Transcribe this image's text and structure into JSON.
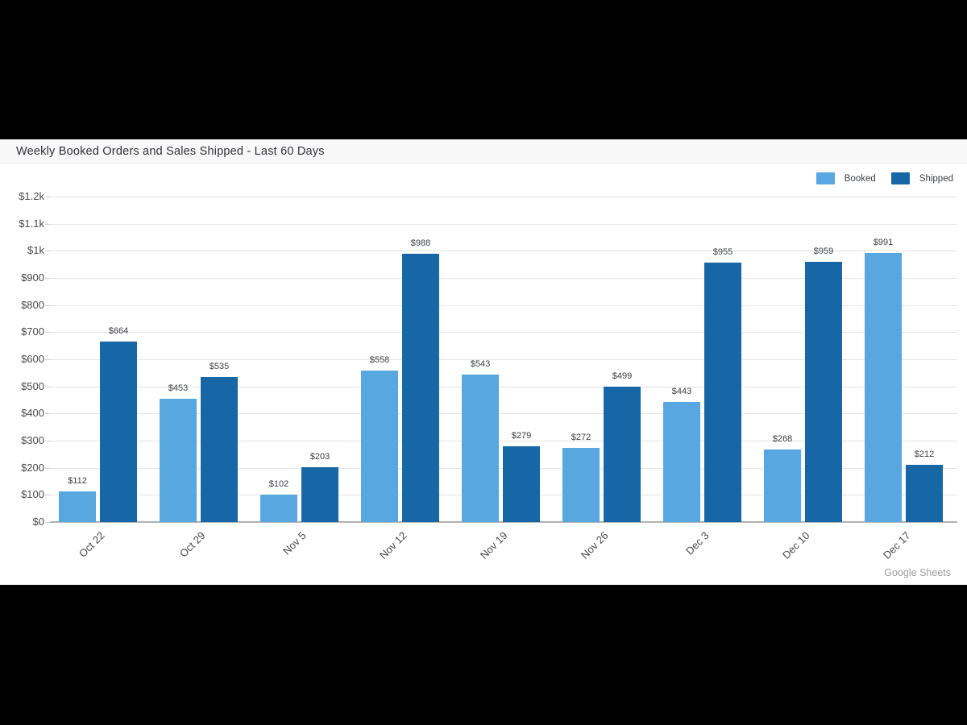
{
  "header": {
    "title": "Weekly Booked Orders and Sales Shipped - Last 60 Days"
  },
  "legend": {
    "items": [
      {
        "label": "Booked",
        "color": "#58a7e0"
      },
      {
        "label": "Shipped",
        "color": "#1767a6"
      }
    ]
  },
  "footer": {
    "watermark": "Google Sheets"
  },
  "chart_data": {
    "type": "bar",
    "title": "Weekly Booked Orders and Sales Shipped - Last 60 Days",
    "categories": [
      "Oct 22",
      "Oct 29",
      "Nov 5",
      "Nov 12",
      "Nov 19",
      "Nov 26",
      "Dec 3",
      "Dec 10",
      "Dec 17"
    ],
    "series": [
      {
        "name": "Booked",
        "color": "#58a7e0",
        "values": [
          112,
          453,
          102,
          558,
          543,
          272,
          443,
          268,
          991
        ]
      },
      {
        "name": "Shipped",
        "color": "#1767a6",
        "values": [
          664,
          535,
          203,
          988,
          279,
          499,
          955,
          959,
          212
        ]
      }
    ],
    "xlabel": "",
    "ylabel": "",
    "ylim": [
      0,
      1200
    ],
    "ytick_step": 100,
    "ytick_labels": [
      "$0",
      "$100",
      "$200",
      "$300",
      "$400",
      "$500",
      "$600",
      "$700",
      "$800",
      "$900",
      "$1k",
      "$1.1k",
      "$1.2k"
    ],
    "value_label_prefix": "$",
    "grid": true,
    "legend_position": "top-right"
  }
}
